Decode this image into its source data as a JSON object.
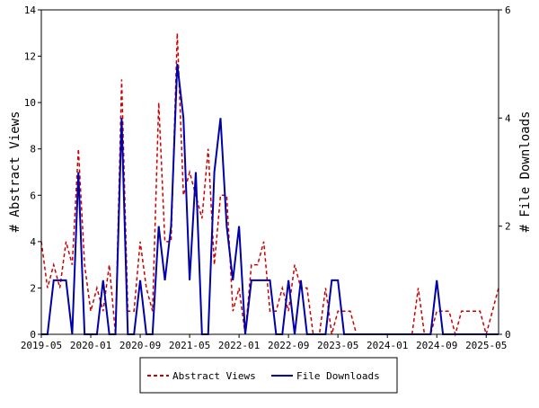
{
  "chart_data": {
    "type": "line",
    "x": [
      "2019-05",
      "2019-06",
      "2019-07",
      "2019-08",
      "2019-09",
      "2019-10",
      "2019-11",
      "2019-12",
      "2020-01",
      "2020-02",
      "2020-03",
      "2020-04",
      "2020-05",
      "2020-06",
      "2020-07",
      "2020-08",
      "2020-09",
      "2020-10",
      "2020-11",
      "2020-12",
      "2021-01",
      "2021-02",
      "2021-03",
      "2021-04",
      "2021-05",
      "2021-06",
      "2021-07",
      "2021-08",
      "2021-09",
      "2021-10",
      "2021-11",
      "2021-12",
      "2022-01",
      "2022-02",
      "2022-03",
      "2022-04",
      "2022-05",
      "2022-06",
      "2022-07",
      "2022-08",
      "2022-09",
      "2022-10",
      "2022-11",
      "2022-12",
      "2023-01",
      "2023-02",
      "2023-03",
      "2023-04",
      "2023-05",
      "2023-06",
      "2023-07",
      "2023-08",
      "2023-09",
      "2023-10",
      "2023-11",
      "2023-12",
      "2024-01",
      "2024-02",
      "2024-03",
      "2024-04",
      "2024-05",
      "2024-06",
      "2024-07",
      "2024-08",
      "2024-09",
      "2024-10",
      "2024-11",
      "2024-12",
      "2025-01",
      "2025-02",
      "2025-03",
      "2025-04",
      "2025-05",
      "2025-06",
      "2025-07"
    ],
    "x_ticks": [
      "2019-05",
      "2020-01",
      "2020-09",
      "2021-05",
      "2022-01",
      "2022-09",
      "2023-05",
      "2024-01",
      "2024-09",
      "2025-05"
    ],
    "series": [
      {
        "name": "Abstract Views",
        "axis": "left",
        "color": "#cc0000",
        "style": "dashed",
        "values": [
          4,
          2,
          3,
          2,
          4,
          3,
          8,
          3,
          1,
          2,
          1,
          3,
          0,
          11,
          1,
          1,
          4,
          2,
          1,
          10,
          4,
          4,
          13,
          6,
          7,
          6,
          5,
          8,
          3,
          6,
          6,
          1,
          2,
          0,
          3,
          3,
          4,
          1,
          1,
          2,
          1,
          3,
          2,
          2,
          0,
          0,
          2,
          0,
          1,
          1,
          1,
          0,
          0,
          0,
          0,
          0,
          0,
          0,
          0,
          0,
          0,
          2,
          0,
          0,
          1,
          1,
          1,
          0,
          1,
          1,
          1,
          1,
          0,
          1,
          2
        ]
      },
      {
        "name": "File Downloads",
        "axis": "right",
        "color": "#0000aa",
        "style": "solid",
        "values": [
          0,
          0,
          1,
          1,
          1,
          0,
          3,
          0,
          0,
          0,
          1,
          0,
          0,
          4,
          0,
          0,
          1,
          0,
          0,
          2,
          1,
          2,
          5,
          4,
          1,
          3,
          0,
          0,
          3,
          4,
          2,
          1,
          2,
          0,
          1,
          1,
          1,
          1,
          0,
          0,
          1,
          0,
          1,
          0,
          0,
          0,
          0,
          1,
          1,
          0,
          0,
          0,
          0,
          0,
          0,
          0,
          0,
          0,
          0,
          0,
          0,
          0,
          0,
          0,
          1,
          0,
          0,
          0,
          0,
          0,
          0,
          0,
          0,
          0,
          0
        ]
      }
    ],
    "y_left": {
      "label": "# Abstract Views",
      "min": 0,
      "max": 14,
      "ticks": [
        0,
        2,
        4,
        6,
        8,
        10,
        12,
        14
      ]
    },
    "y_right": {
      "label": "# File Downloads",
      "min": 0,
      "max": 6,
      "ticks": [
        0,
        2,
        4,
        6
      ]
    },
    "grid": false,
    "legend_placement": "bottom-center"
  }
}
